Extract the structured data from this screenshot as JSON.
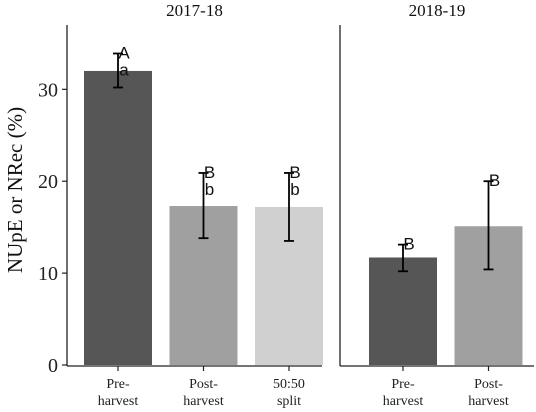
{
  "chart_data": {
    "type": "bar",
    "ylabel": "NUpE or NRec (%)",
    "ylim": [
      0,
      37
    ],
    "yticks": [
      0,
      10,
      20,
      30
    ],
    "grid": false,
    "colors": {
      "Pre-harvest": "#565656",
      "Post-harvest": "#a0a0a0",
      "50:50 split": "#d0d0d0"
    },
    "panels": [
      {
        "title": "2017-18",
        "bars": [
          {
            "category": "Pre-\nharvest",
            "group": "Pre-harvest",
            "value": 32.0,
            "err_low": 30.2,
            "err_high": 33.9,
            "labels": [
              "A",
              "a"
            ]
          },
          {
            "category": "Post-\nharvest",
            "group": "Post-harvest",
            "value": 17.3,
            "err_low": 13.8,
            "err_high": 20.9,
            "labels": [
              "B",
              "b"
            ]
          },
          {
            "category": "50:50\nsplit",
            "group": "50:50 split",
            "value": 17.2,
            "err_low": 13.5,
            "err_high": 20.9,
            "labels": [
              "B",
              "b"
            ]
          }
        ]
      },
      {
        "title": "2018-19",
        "bars": [
          {
            "category": "Pre-\nharvest",
            "group": "Pre-harvest",
            "value": 11.7,
            "err_low": 10.2,
            "err_high": 13.1,
            "labels": [
              "B"
            ]
          },
          {
            "category": "Post-\nharvest",
            "group": "Post-harvest",
            "value": 15.1,
            "err_low": 10.4,
            "err_high": 20.0,
            "labels": [
              "B"
            ]
          }
        ]
      }
    ]
  }
}
